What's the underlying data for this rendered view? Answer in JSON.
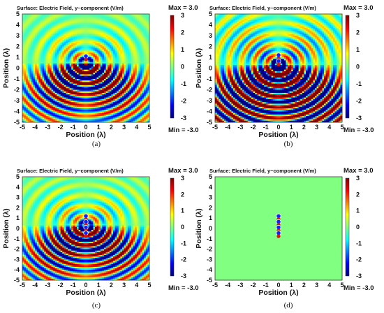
{
  "chart_data": [
    {
      "type": "heatmap",
      "panel": "(a)",
      "title": "Surface: Electric Field, y−component (V/m)",
      "xlabel": "Position (λ)",
      "ylabel": "Position (λ)",
      "xlim": [
        -5,
        5
      ],
      "ylim": [
        -5,
        5
      ],
      "xticks": [
        "-5",
        "-4",
        "-3",
        "-2",
        "-1",
        "0",
        "1",
        "2",
        "3",
        "4",
        "5"
      ],
      "yticks": [
        "5",
        "4",
        "3",
        "2",
        "1",
        "0",
        "-1",
        "-2",
        "-3",
        "-4",
        "-5"
      ],
      "colorbar": {
        "ticks": [
          "3",
          "2",
          "1",
          "0",
          "-1",
          "-2",
          "-3"
        ],
        "max_label": "Max = 3.0",
        "min_label": "Min = -3.0",
        "range": [
          -3,
          3
        ]
      },
      "source": {
        "x": 0,
        "y": 0.5,
        "dipoles": 1
      }
    },
    {
      "type": "heatmap",
      "panel": "(b)",
      "title": "Surface: Electric Field, y−component (V/m)",
      "xlabel": "Position (λ)",
      "ylabel": "Position (λ)",
      "xlim": [
        -5,
        5
      ],
      "ylim": [
        -5,
        5
      ],
      "xticks": [
        "-5",
        "-4",
        "-3",
        "-2",
        "-1",
        "0",
        "1",
        "2",
        "3",
        "4",
        "5"
      ],
      "yticks": [
        "5",
        "4",
        "3",
        "2",
        "1",
        "0",
        "-1",
        "-2",
        "-3",
        "-4",
        "-5"
      ],
      "colorbar": {
        "ticks": [
          "3",
          "2",
          "1",
          "0",
          "-1",
          "-2",
          "-3"
        ],
        "max_label": "Max = 3.0",
        "min_label": "Min = -3.0",
        "range": [
          -3,
          3
        ]
      },
      "source": {
        "x": 0,
        "y": 0.3,
        "dipoles": 2
      }
    },
    {
      "type": "heatmap",
      "panel": "(c)",
      "title": "Surface: Electric Field, y−component (V/m)",
      "xlabel": "Position (λ)",
      "ylabel": "Position (λ)",
      "xlim": [
        -5,
        5
      ],
      "ylim": [
        -5,
        5
      ],
      "xticks": [
        "-5",
        "-4",
        "-3",
        "-2",
        "-1",
        "0",
        "1",
        "2",
        "3",
        "4",
        "5"
      ],
      "yticks": [
        "5",
        "4",
        "3",
        "2",
        "1",
        "0",
        "-1",
        "-2",
        "-3",
        "-4",
        "-5"
      ],
      "colorbar": {
        "ticks": [
          "3",
          "2",
          "1",
          "0",
          "-1",
          "-2",
          "-3"
        ],
        "max_label": "Max = 3.0",
        "min_label": "Min = -3.0",
        "range": [
          -3,
          3
        ]
      },
      "source": {
        "x": 0,
        "y": 0.3,
        "dipoles": 4
      }
    },
    {
      "type": "heatmap",
      "panel": "(d)",
      "title": "Surface: Electric Field, y−component (V/m)",
      "xlabel": "Position (λ)",
      "ylabel": "Position (λ)",
      "xlim": [
        -5,
        5
      ],
      "ylim": [
        -5,
        5
      ],
      "xticks": [
        "-5",
        "-4",
        "-3",
        "-2",
        "-1",
        "0",
        "1",
        "2",
        "3",
        "4",
        "5"
      ],
      "yticks": [
        "5",
        "4",
        "3",
        "2",
        "1",
        "0",
        "-1",
        "-2",
        "-3",
        "-4",
        "-5"
      ],
      "colorbar": {
        "ticks": [
          "3",
          "2",
          "1",
          "0",
          "-1",
          "-2",
          "-3"
        ],
        "max_label": "Max = 3.0",
        "min_label": "Min = -3.0",
        "range": [
          -3,
          3
        ]
      },
      "source": {
        "x": 0,
        "y": 0.3,
        "dipoles": 4
      }
    }
  ]
}
